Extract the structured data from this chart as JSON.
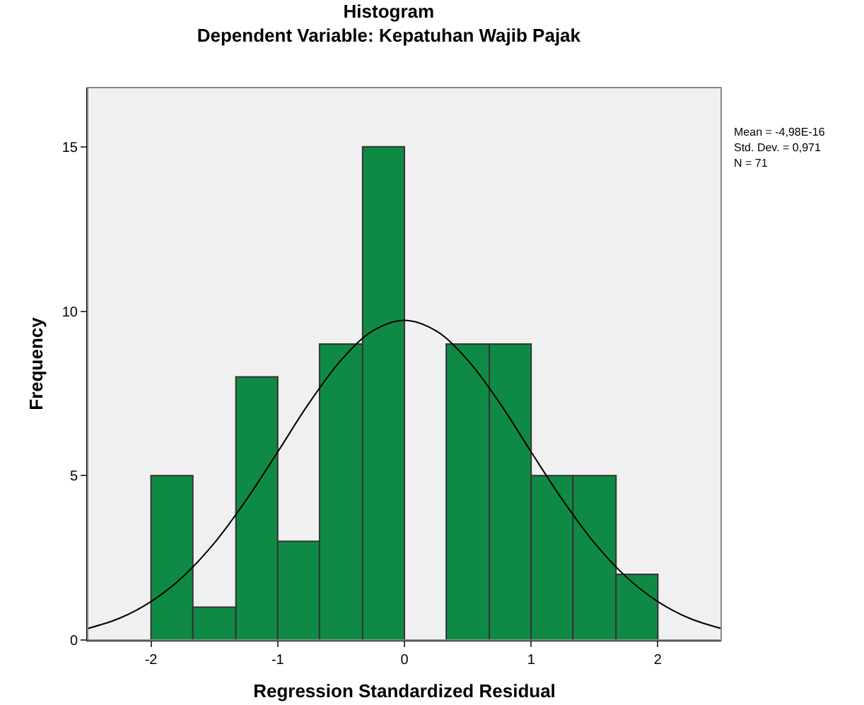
{
  "chart_data": {
    "type": "histogram",
    "title": "Histogram",
    "subtitle": "Dependent Variable: Kepatuhan Wajib Pajak",
    "xlabel": "Regression Standardized Residual",
    "ylabel": "Frequency",
    "bins": [
      -2,
      -1.67,
      -1.33,
      -1,
      -0.67,
      -0.33,
      0,
      0.33,
      0.67,
      1,
      1.33,
      1.67,
      2
    ],
    "values": [
      5,
      1,
      8,
      3,
      9,
      15,
      0,
      9,
      9,
      5,
      5,
      2
    ],
    "color": "#0f8a45",
    "series": [
      {
        "type": "line",
        "color": "#000000",
        "x": [
          -2.5,
          -2.25,
          -2,
          -1.75,
          -1.5,
          -1.25,
          -1,
          -0.75,
          -0.5,
          -0.25,
          0,
          0.25,
          0.5,
          0.75,
          1,
          1.25,
          1.5,
          1.75,
          2,
          2.25,
          2.5
        ],
        "values": [
          0.35,
          0.66,
          1.17,
          1.92,
          2.95,
          4.25,
          5.72,
          7.22,
          8.51,
          9.4,
          9.72,
          9.4,
          8.51,
          7.22,
          5.72,
          4.25,
          2.95,
          1.92,
          1.17,
          0.66,
          0.35
        ]
      }
    ],
    "xlim": [
      -2.5,
      2.5
    ],
    "xticks": [
      -2,
      -1,
      0,
      1,
      2
    ],
    "ylim": [
      0,
      16.8
    ],
    "yticks": [
      0,
      5,
      10,
      15
    ],
    "annotations": [
      "Mean = -4,98E-16",
      "Std. Dev. = 0,971",
      "N = 71"
    ],
    "grid": false
  }
}
